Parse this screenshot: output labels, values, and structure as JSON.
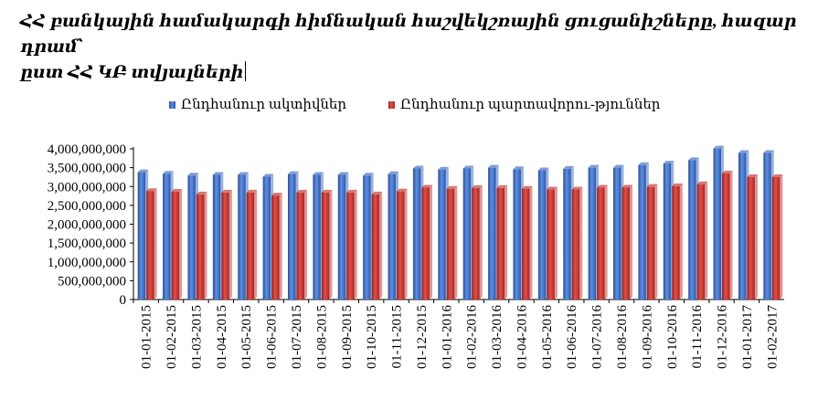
{
  "chart_data": {
    "type": "bar",
    "title_line1": "ՀՀ բանկային համակարգի հիմնական հաշվեկշռային ցուցանիշները, հազար դրամ՝",
    "title_line2": "ըստ ՀՀ ԿԲ տվյալների",
    "categories": [
      "01-01-2015",
      "01-02-2015",
      "01-03-2015",
      "01-04-2015",
      "01-05-2015",
      "01-06-2015",
      "01-07-2015",
      "01-08-2015",
      "01-09-2015",
      "01-10-2015",
      "01-11-2015",
      "01-12-2015",
      "01-01-2016",
      "01-02-2016",
      "01-03-2016",
      "01-04-2016",
      "01-05-2016",
      "01-06-2016",
      "01-07-2016",
      "01-08-2016",
      "01-09-2016",
      "01-10-2016",
      "01-11-2016",
      "01-12-2016",
      "01-01-2017",
      "01-02-2017"
    ],
    "series": [
      {
        "name": "Ընդհանուր ակտիվներ",
        "color": "#3a67c0",
        "values": [
          3380000000,
          3340000000,
          3290000000,
          3310000000,
          3310000000,
          3260000000,
          3330000000,
          3310000000,
          3310000000,
          3290000000,
          3330000000,
          3480000000,
          3450000000,
          3480000000,
          3500000000,
          3460000000,
          3430000000,
          3470000000,
          3500000000,
          3500000000,
          3570000000,
          3610000000,
          3700000000,
          4010000000,
          3890000000,
          3890000000
        ]
      },
      {
        "name": "Ընդհանուր պարտավորու-թյուններ",
        "color": "#c0302a",
        "values": [
          2880000000,
          2860000000,
          2790000000,
          2840000000,
          2840000000,
          2760000000,
          2840000000,
          2840000000,
          2840000000,
          2790000000,
          2870000000,
          2970000000,
          2940000000,
          2960000000,
          2960000000,
          2940000000,
          2920000000,
          2920000000,
          2970000000,
          2970000000,
          2990000000,
          3010000000,
          3060000000,
          3350000000,
          3250000000,
          3250000000
        ]
      }
    ],
    "yticks": [
      "0",
      "500,000,000",
      "1,000,000,000",
      "1,500,000,000",
      "2,000,000,000",
      "2,500,000,000",
      "3,000,000,000",
      "3,500,000,000",
      "4,000,000,000"
    ],
    "ylim": [
      0,
      4000000000
    ],
    "legend_position": "top",
    "grid": false
  }
}
